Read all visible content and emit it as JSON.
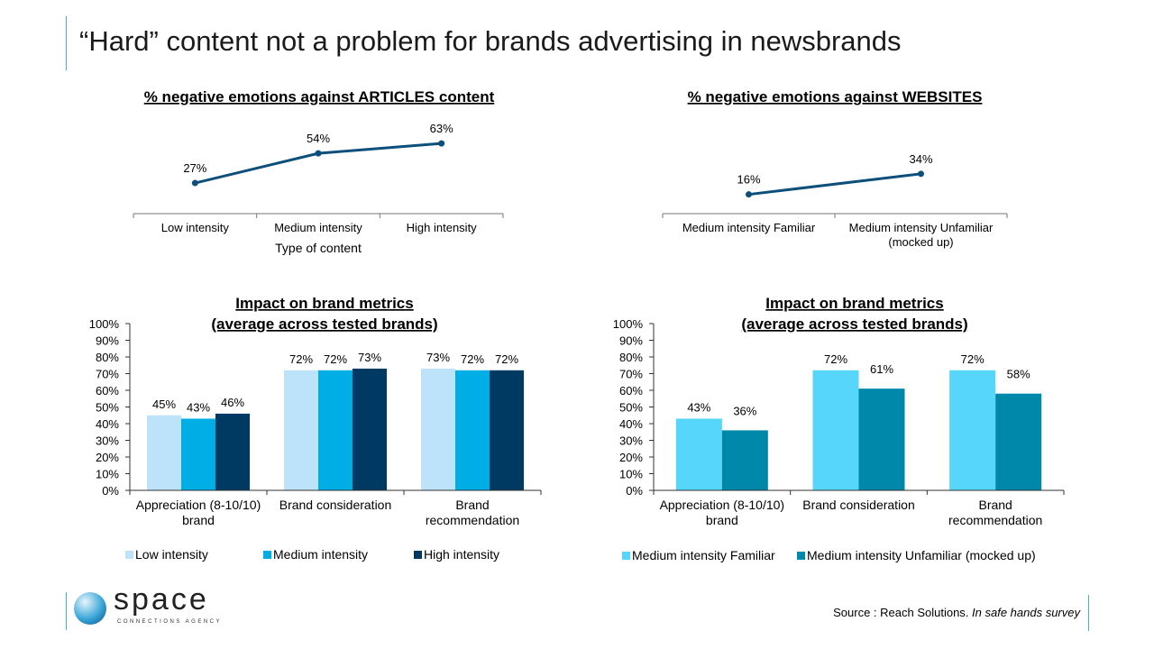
{
  "title": "“Hard” content not a problem for brands advertising in newsbrands",
  "source_prefix": "Source : Reach Solutions. ",
  "source_italic": "In safe hands survey",
  "logo": {
    "word": "space",
    "tagline": "CONNECTIONS AGENCY"
  },
  "chart_data": [
    {
      "id": "c1",
      "type": "line",
      "title": "% negative emotions against ARTICLES content",
      "xlabel": "Type of content",
      "categories": [
        "Low intensity",
        "Medium intensity",
        "High intensity"
      ],
      "values": [
        27,
        54,
        63
      ],
      "labels": [
        "27%",
        "54%",
        "63%"
      ],
      "color": "#0b4f7a"
    },
    {
      "id": "c2",
      "type": "line",
      "title": "% negative emotions against WEBSITES",
      "xlabel": "",
      "categories": [
        "Medium intensity Familiar",
        "Medium intensity Unfamiliar (mocked up)"
      ],
      "values": [
        16,
        34
      ],
      "labels": [
        "16%",
        "34%"
      ],
      "color": "#0b4f7a"
    },
    {
      "id": "c3",
      "type": "bar",
      "title": [
        "Impact on brand metrics",
        "(average across tested brands)"
      ],
      "categories": [
        [
          "Appreciation (8-10/10)",
          "brand"
        ],
        [
          "Brand consideration"
        ],
        [
          "Brand",
          "recommendation"
        ]
      ],
      "ylim": [
        0,
        100
      ],
      "yticks": [
        "0%",
        "10%",
        "20%",
        "30%",
        "40%",
        "50%",
        "60%",
        "70%",
        "80%",
        "90%",
        "100%"
      ],
      "series": [
        {
          "name": "Low intensity",
          "values": [
            45,
            72,
            73
          ],
          "color": "#bde3fb"
        },
        {
          "name": "Medium intensity",
          "values": [
            43,
            72,
            72
          ],
          "color": "#00aee6"
        },
        {
          "name": "High intensity",
          "values": [
            46,
            73,
            72
          ],
          "color": "#003a63"
        }
      ],
      "legend": "bottom"
    },
    {
      "id": "c4",
      "type": "bar",
      "title": [
        "Impact on brand metrics",
        "(average across tested brands)"
      ],
      "categories": [
        [
          "Appreciation (8-10/10)",
          "brand"
        ],
        [
          "Brand consideration"
        ],
        [
          "Brand",
          "recommendation"
        ]
      ],
      "ylim": [
        0,
        100
      ],
      "yticks": [
        "0%",
        "10%",
        "20%",
        "30%",
        "40%",
        "50%",
        "60%",
        "70%",
        "80%",
        "90%",
        "100%"
      ],
      "series": [
        {
          "name": "Medium intensity Familiar",
          "values": [
            43,
            72,
            72
          ],
          "color": "#55d6fa"
        },
        {
          "name": "Medium intensity Unfamiliar (mocked up)",
          "values": [
            36,
            61,
            58
          ],
          "color": "#0088aa"
        }
      ],
      "legend": "bottom"
    }
  ]
}
